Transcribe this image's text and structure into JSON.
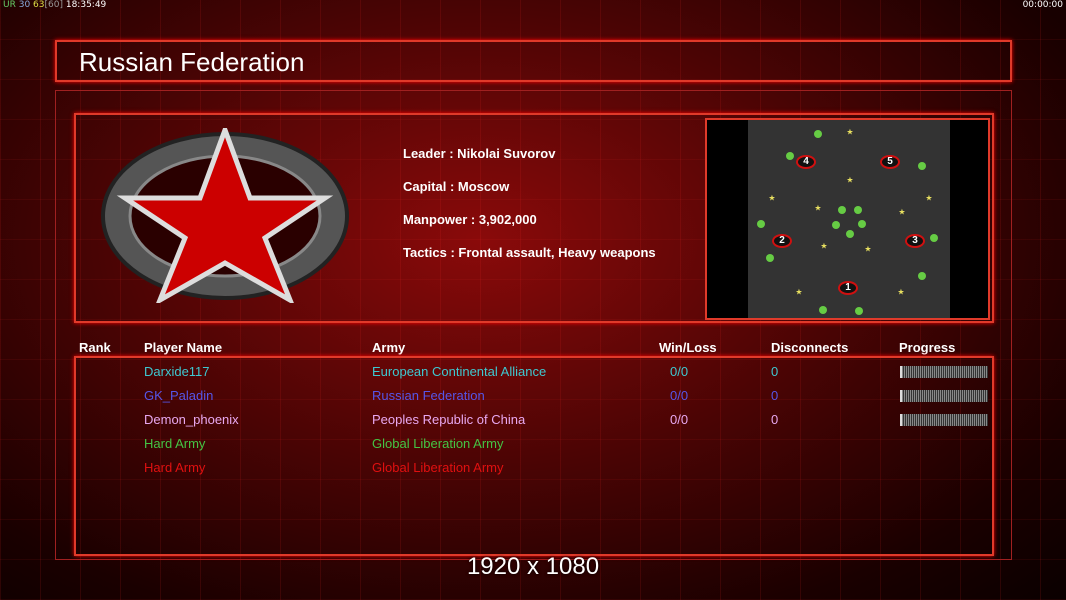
{
  "status_bar": {
    "ur": "UR",
    "v1": "30",
    "v2": "63",
    "v3": "[60]",
    "clock": "18:35:49",
    "timer": "00:00:00"
  },
  "title": "Russian Federation",
  "faction": {
    "leader": "Leader : Nikolai Suvorov",
    "capital": "Capital : Moscow",
    "manpower": "Manpower : 3,902,000",
    "tactics": "Tactics : Frontal assault, Heavy weapons"
  },
  "map": {
    "start_positions": [
      "1",
      "2",
      "3",
      "4",
      "5"
    ]
  },
  "columns": [
    "Rank",
    "Player Name",
    "Army",
    "Win/Loss",
    "Disconnects",
    "Progress"
  ],
  "players": [
    {
      "name": "Darxide117",
      "army": "European Continental Alliance",
      "winloss": "0/0",
      "disconnects": "0",
      "color": "#3ec8d0",
      "progress": true
    },
    {
      "name": "GK_Paladin",
      "army": "Russian Federation",
      "winloss": "0/0",
      "disconnects": "0",
      "color": "#5656e8",
      "progress": true
    },
    {
      "name": "Demon_phoenix",
      "army": "Peoples Republic of China",
      "winloss": "0/0",
      "disconnects": "0",
      "color": "#e8a8f0",
      "progress": true
    },
    {
      "name": "Hard Army",
      "army": "Global Liberation Army",
      "color": "#44c444"
    },
    {
      "name": "Hard Army",
      "army": "Global Liberation Army",
      "color": "#e01010"
    }
  ],
  "resolution": "1920 x 1080"
}
